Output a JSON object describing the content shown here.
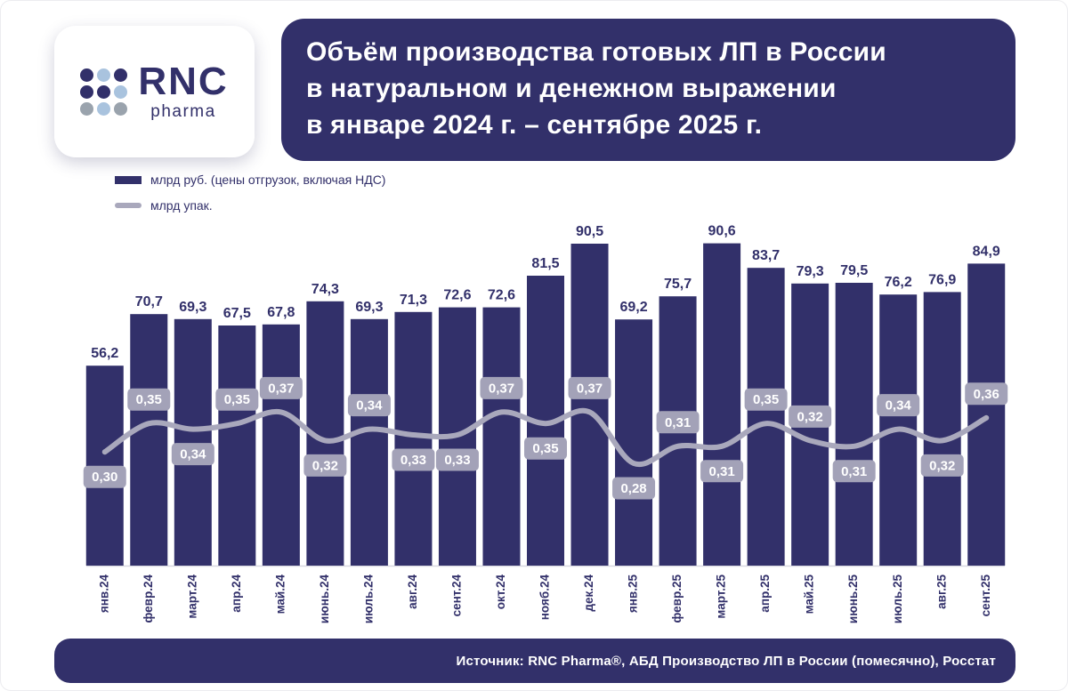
{
  "colors": {
    "navy": "#32306a",
    "line_gray": "#a9a8bc",
    "label_box": "#a3a2b8",
    "logo_blue": "#a9c3de",
    "logo_gray": "#9aa3ad",
    "axis_line": "#d8d8e0"
  },
  "logo": {
    "name": "RNC",
    "sub": "pharma",
    "dot_colors": [
      "#32306a",
      "#a9c3de",
      "#32306a",
      "#32306a",
      "#32306a",
      "#a9c3de",
      "#9aa3ad",
      "#a9c3de",
      "#9aa3ad"
    ]
  },
  "header": {
    "title_lines": [
      "Объём производства готовых ЛП в России",
      "в натуральном и денежном выражении",
      "в январе 2024 г. – сентябре 2025 г."
    ]
  },
  "legend": {
    "bar_label": "млрд руб. (цены отгрузок, включая НДС)",
    "line_label": "млрд упак."
  },
  "footer": {
    "source": "Источник: RNC Pharma®, АБД Производство ЛП в России (помесячно), Росстат"
  },
  "chart_data": {
    "type": "bar",
    "title": "Объём производства готовых ЛП в России в натуральном и денежном выражении в январе 2024 г. – сентябре 2025 г.",
    "xlabel": "",
    "ylabel": "",
    "legend_position": "top-left",
    "grid": false,
    "x_tick_rotation": 90,
    "ylim_bar": [
      0,
      100
    ],
    "ylim_line": [
      0.2,
      0.45
    ],
    "categories": [
      "янв.24",
      "февр.24",
      "март.24",
      "апр.24",
      "май.24",
      "июнь.24",
      "июль.24",
      "авг.24",
      "сент.24",
      "окт.24",
      "нояб.24",
      "дек.24",
      "янв.25",
      "февр.25",
      "март.25",
      "апр.25",
      "май.25",
      "июнь.25",
      "июль.25",
      "авг.25",
      "сент.25"
    ],
    "series": [
      {
        "name": "млрд руб. (цены отгрузок, включая НДС)",
        "type": "bar",
        "decimals": 1,
        "values": [
          56.2,
          70.7,
          69.3,
          67.5,
          67.8,
          74.3,
          69.3,
          71.3,
          72.6,
          72.6,
          81.5,
          90.5,
          69.2,
          75.7,
          90.6,
          83.7,
          79.3,
          79.5,
          76.2,
          76.9,
          84.9
        ]
      },
      {
        "name": "млрд упак.",
        "type": "line",
        "decimals": 2,
        "values": [
          0.3,
          0.35,
          0.34,
          0.35,
          0.37,
          0.32,
          0.34,
          0.33,
          0.33,
          0.37,
          0.35,
          0.37,
          0.28,
          0.31,
          0.31,
          0.35,
          0.32,
          0.31,
          0.34,
          0.32,
          0.36
        ],
        "label_positions": [
          "below",
          "above",
          "below",
          "above",
          "above",
          "below",
          "above",
          "below",
          "below",
          "above",
          "below",
          "above",
          "below",
          "above",
          "below",
          "above",
          "above",
          "below",
          "above",
          "below",
          "above"
        ]
      }
    ]
  }
}
